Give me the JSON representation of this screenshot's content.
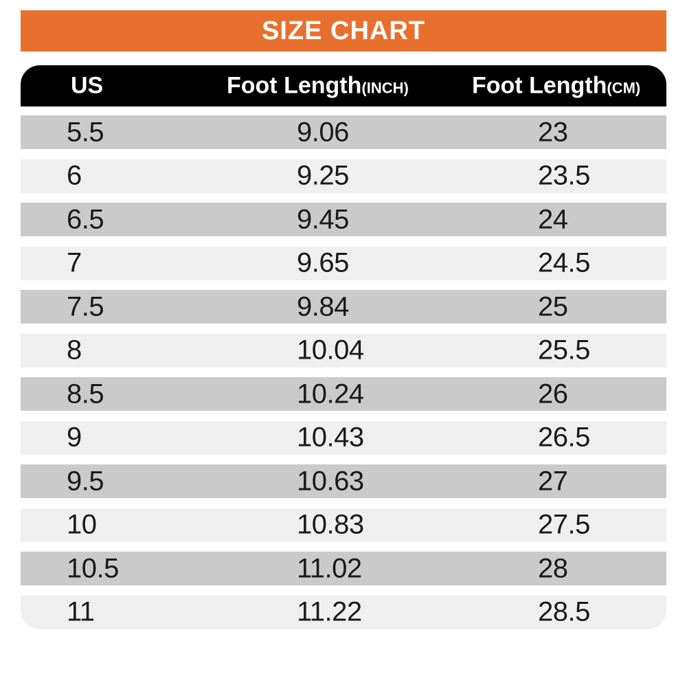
{
  "banner": {
    "title": "SIZE CHART"
  },
  "colors": {
    "banner_bg": "#E8702E",
    "header_bg": "#000000",
    "header_text": "#FFFFFF",
    "row_dark": "#CACACA",
    "row_light": "#EFEFEF",
    "value_text": "#1A1A1A"
  },
  "table": {
    "header": {
      "columns": [
        {
          "label": "US",
          "suffix": ""
        },
        {
          "label": "Foot Length",
          "suffix": "(INCH)"
        },
        {
          "label": "Foot Length",
          "suffix": "(CM)"
        }
      ]
    },
    "rows": [
      {
        "us": "5.5",
        "inch": "9.06",
        "cm": "23"
      },
      {
        "us": "6",
        "inch": "9.25",
        "cm": "23.5"
      },
      {
        "us": "6.5",
        "inch": "9.45",
        "cm": "24"
      },
      {
        "us": "7",
        "inch": "9.65",
        "cm": "24.5"
      },
      {
        "us": "7.5",
        "inch": "9.84",
        "cm": "25"
      },
      {
        "us": "8",
        "inch": "10.04",
        "cm": "25.5"
      },
      {
        "us": "8.5",
        "inch": "10.24",
        "cm": "26"
      },
      {
        "us": "9",
        "inch": "10.43",
        "cm": "26.5"
      },
      {
        "us": "9.5",
        "inch": "10.63",
        "cm": "27"
      },
      {
        "us": "10",
        "inch": "10.83",
        "cm": "27.5"
      },
      {
        "us": "10.5",
        "inch": "11.02",
        "cm": "28"
      },
      {
        "us": "11",
        "inch": "11.22",
        "cm": "28.5"
      }
    ]
  },
  "chart_data": {
    "type": "table",
    "title": "SIZE CHART",
    "columns": [
      "US",
      "Foot Length(INCH)",
      "Foot Length(CM)"
    ],
    "rows": [
      [
        "5.5",
        9.06,
        23
      ],
      [
        "6",
        9.25,
        23.5
      ],
      [
        "6.5",
        9.45,
        24
      ],
      [
        "7",
        9.65,
        24.5
      ],
      [
        "7.5",
        9.84,
        25
      ],
      [
        "8",
        10.04,
        25.5
      ],
      [
        "8.5",
        10.24,
        26
      ],
      [
        "9",
        10.43,
        26.5
      ],
      [
        "9.5",
        10.63,
        27
      ],
      [
        "10",
        10.83,
        27.5
      ],
      [
        "10.5",
        11.02,
        28
      ],
      [
        "11",
        11.22,
        28.5
      ]
    ]
  }
}
